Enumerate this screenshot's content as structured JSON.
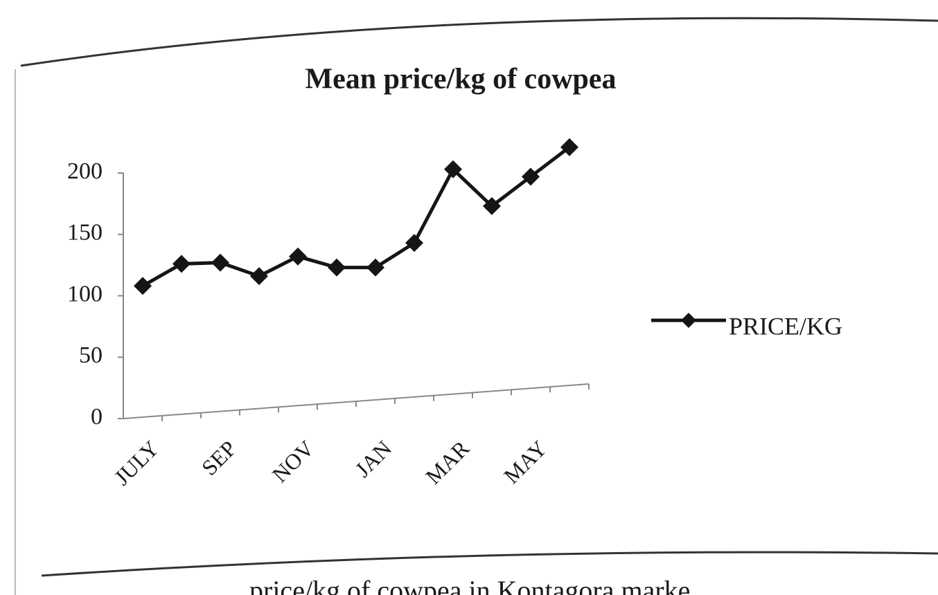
{
  "chart_data": {
    "type": "line",
    "title": "Mean price/kg of cowpea",
    "categories": [
      "JULY",
      null,
      "SEP",
      null,
      "NOV",
      null,
      "JAN",
      null,
      "MAR",
      null,
      "MAY",
      null
    ],
    "series": [
      {
        "name": "PRICE/KG",
        "color": "#151515",
        "values": [
          108,
          126,
          127,
          116,
          132,
          123,
          123,
          143,
          203,
          173,
          197,
          221
        ]
      }
    ],
    "ylim": [
      0,
      200
    ],
    "yticks": [
      0,
      50,
      100,
      150,
      200
    ],
    "grid": false,
    "legend": "right",
    "caption": "price/kg of cowpea in Kontagora marke"
  }
}
